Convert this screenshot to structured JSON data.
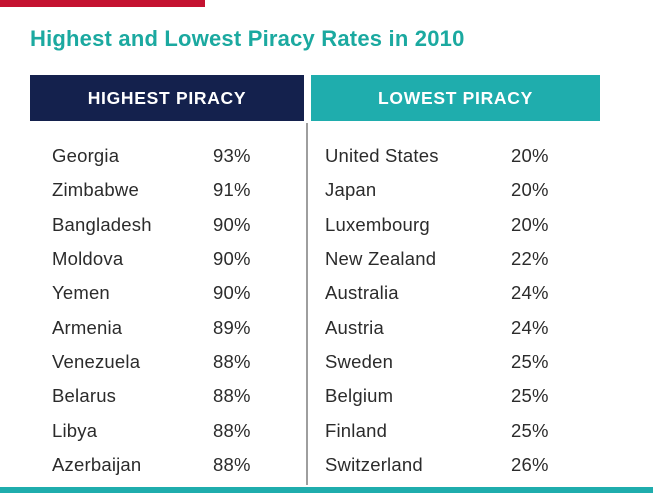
{
  "page": {
    "title": "Highest and Lowest Piracy Rates in 2010"
  },
  "colors": {
    "accent_red": "#C41230",
    "navy": "#14214D",
    "teal": "#1FADAD",
    "title_teal": "#1BA9A0",
    "text": "#2B2B2B",
    "divider": "#9E9E9E"
  },
  "table": {
    "columns": [
      {
        "header": "HIGHEST PIRACY",
        "rows": [
          {
            "country": "Georgia",
            "rate": "93%"
          },
          {
            "country": "Zimbabwe",
            "rate": "91%"
          },
          {
            "country": "Bangladesh",
            "rate": "90%"
          },
          {
            "country": "Moldova",
            "rate": "90%"
          },
          {
            "country": "Yemen",
            "rate": "90%"
          },
          {
            "country": "Armenia",
            "rate": "89%"
          },
          {
            "country": "Venezuela",
            "rate": "88%"
          },
          {
            "country": "Belarus",
            "rate": "88%"
          },
          {
            "country": "Libya",
            "rate": "88%"
          },
          {
            "country": "Azerbaijan",
            "rate": "88%"
          }
        ]
      },
      {
        "header": "LOWEST PIRACY",
        "rows": [
          {
            "country": "United States",
            "rate": "20%"
          },
          {
            "country": "Japan",
            "rate": "20%"
          },
          {
            "country": "Luxembourg",
            "rate": "20%"
          },
          {
            "country": "New Zealand",
            "rate": "22%"
          },
          {
            "country": "Australia",
            "rate": "24%"
          },
          {
            "country": "Austria",
            "rate": "24%"
          },
          {
            "country": "Sweden",
            "rate": "25%"
          },
          {
            "country": "Belgium",
            "rate": "25%"
          },
          {
            "country": "Finland",
            "rate": "25%"
          },
          {
            "country": "Switzerland",
            "rate": "26%"
          }
        ]
      }
    ]
  },
  "chart_data": {
    "type": "table",
    "title": "Highest and Lowest Piracy Rates in 2010",
    "unit": "%",
    "series": [
      {
        "name": "HIGHEST PIRACY",
        "categories": [
          "Georgia",
          "Zimbabwe",
          "Bangladesh",
          "Moldova",
          "Yemen",
          "Armenia",
          "Venezuela",
          "Belarus",
          "Libya",
          "Azerbaijan"
        ],
        "values": [
          93,
          91,
          90,
          90,
          90,
          89,
          88,
          88,
          88,
          88
        ]
      },
      {
        "name": "LOWEST PIRACY",
        "categories": [
          "United States",
          "Japan",
          "Luxembourg",
          "New Zealand",
          "Australia",
          "Austria",
          "Sweden",
          "Belgium",
          "Finland",
          "Switzerland"
        ],
        "values": [
          20,
          20,
          20,
          22,
          24,
          24,
          25,
          25,
          25,
          26
        ]
      }
    ]
  }
}
